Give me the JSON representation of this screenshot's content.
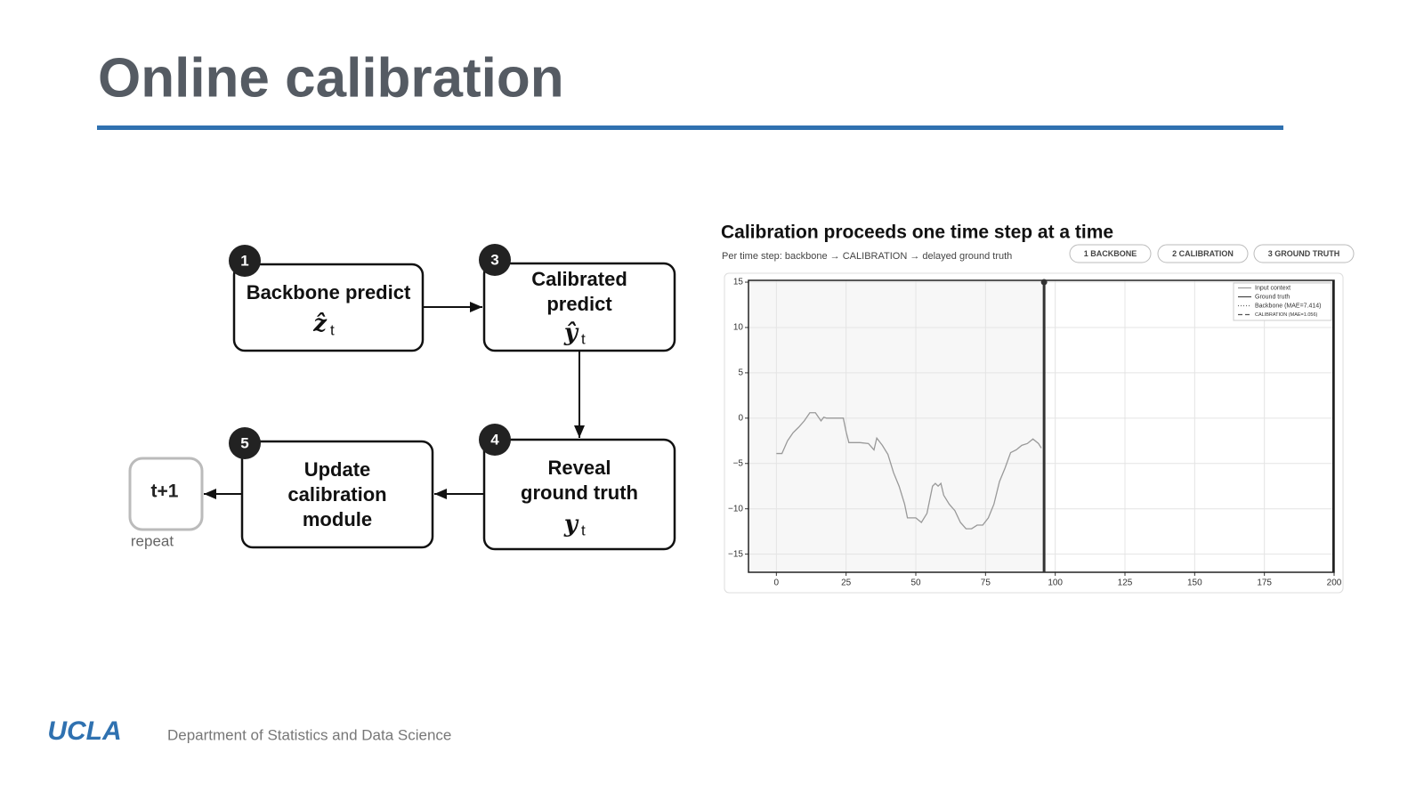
{
  "header": {
    "title": "Online calibration"
  },
  "diagram": {
    "nodes": [
      {
        "number": "1",
        "lines": [
          "Backbone predict"
        ],
        "symbol": "ẑ",
        "subscript": "t"
      },
      {
        "number": "3",
        "lines": [
          "Calibrated",
          "predict"
        ],
        "symbol": "ŷ",
        "subscript": "t"
      },
      {
        "number": "4",
        "lines": [
          "Reveal",
          "ground truth"
        ],
        "symbol": "y",
        "subscript": "t"
      },
      {
        "number": "5",
        "lines": [
          "Update",
          "calibration",
          "module"
        ]
      }
    ],
    "repeat": {
      "label": "t+1",
      "note": "repeat"
    }
  },
  "chart_data": {
    "type": "line",
    "title": "Calibration proceeds one time step at a time",
    "subtitle": "Per time step: backbone → CALIBRATION → delayed ground truth",
    "buttons": [
      "1 BACKBONE",
      "2 CALIBRATION",
      "3 GROUND TRUTH"
    ],
    "xlim": [
      -10,
      200
    ],
    "ylim": [
      -17,
      15.2
    ],
    "xticks": [
      0,
      25,
      50,
      75,
      100,
      125,
      150,
      175,
      200
    ],
    "yticks": [
      {
        "value": -15,
        "label": "−15"
      },
      {
        "value": -10,
        "label": "−10"
      },
      {
        "value": -5,
        "label": "−5"
      },
      0,
      5,
      10,
      15
    ],
    "grid": true,
    "legend": "upper right",
    "marker_x": 96,
    "series": [
      {
        "name": "Input context",
        "color": "#999999",
        "x": [
          0,
          2,
          4,
          6,
          8,
          10,
          12,
          14,
          16,
          17,
          18,
          22,
          24,
          25,
          26,
          30,
          33,
          35,
          36,
          38,
          40,
          42,
          44,
          46,
          47,
          50,
          52,
          54,
          55,
          56,
          57,
          58,
          59,
          60,
          62,
          64,
          66,
          68,
          70,
          72,
          74,
          76,
          78,
          80,
          82,
          84,
          86,
          88,
          90,
          92,
          94,
          95
        ],
        "values": [
          -3.9,
          -3.9,
          -2.5,
          -1.6,
          -1.0,
          -0.3,
          0.6,
          0.6,
          -0.3,
          0.1,
          0,
          0,
          0,
          -1.5,
          -2.7,
          -2.7,
          -2.8,
          -3.5,
          -2.2,
          -3.0,
          -4.0,
          -6.0,
          -7.5,
          -9.5,
          -11.0,
          -11.0,
          -11.5,
          -10.5,
          -9.0,
          -7.5,
          -7.2,
          -7.5,
          -7.2,
          -8.5,
          -9.5,
          -10.2,
          -11.5,
          -12.2,
          -12.2,
          -11.8,
          -11.8,
          -11.0,
          -9.5,
          -7.0,
          -5.5,
          -3.8,
          -3.5,
          -3.0,
          -2.8,
          -2.3,
          -2.8,
          -3.3
        ]
      },
      {
        "name": "Ground truth",
        "color": "#444444"
      },
      {
        "name": "Backbone (MAE=7.414)",
        "color": "#666666",
        "dash": "1,2"
      },
      {
        "name": "CALIBRATION (MAE=1.056)",
        "color": "#555555",
        "dash": "5,3"
      }
    ]
  },
  "footer": {
    "logo": "UCLA",
    "department": "Department of Statistics and Data Science"
  }
}
